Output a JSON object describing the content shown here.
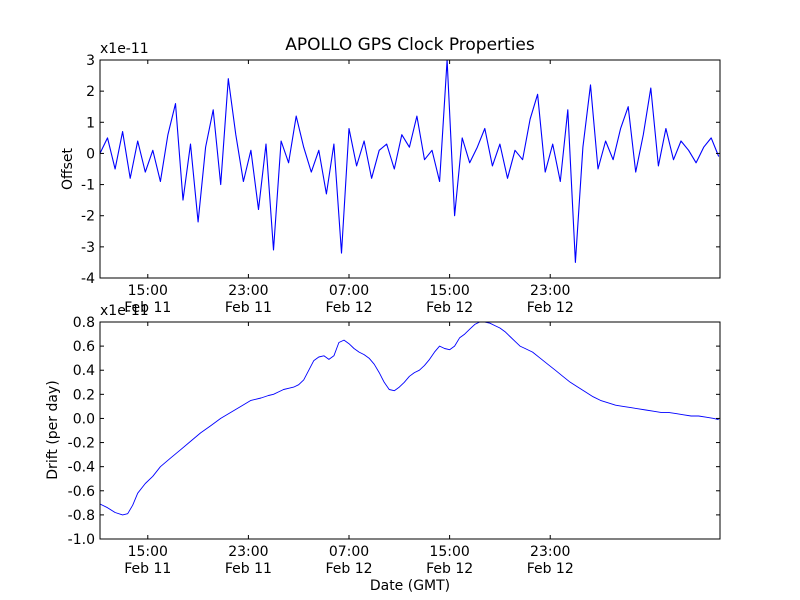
{
  "chart_data": [
    {
      "type": "line",
      "title": "APOLLO GPS Clock Properties",
      "ylabel": "Offset",
      "xlabel": "",
      "y_multiplier": "x1e-11",
      "ylim": [
        -4,
        3
      ],
      "xlim_hours": [
        11.2,
        60.5
      ],
      "y_ticks": [
        {
          "v": 3,
          "label": "3"
        },
        {
          "v": 2,
          "label": "2"
        },
        {
          "v": 1,
          "label": "1"
        },
        {
          "v": 0,
          "label": "0"
        },
        {
          "v": -1,
          "label": "-1"
        },
        {
          "v": -2,
          "label": "-2"
        },
        {
          "v": -3,
          "label": "-3"
        },
        {
          "v": -4,
          "label": "-4"
        }
      ],
      "x_ticks": [
        {
          "h": 15,
          "time": "15:00",
          "date": "Feb 11"
        },
        {
          "h": 23,
          "time": "23:00",
          "date": "Feb 11"
        },
        {
          "h": 31,
          "time": "07:00",
          "date": "Feb 12"
        },
        {
          "h": 39,
          "time": "15:00",
          "date": "Feb 12"
        },
        {
          "h": 47,
          "time": "23:00",
          "date": "Feb 12"
        }
      ],
      "color": "#0000ff",
      "series": [
        {
          "name": "Offset",
          "x": [
            11.2,
            11.8,
            12.4,
            13.0,
            13.6,
            14.2,
            14.8,
            15.4,
            16.0,
            16.6,
            17.2,
            17.8,
            18.4,
            19.0,
            19.6,
            20.2,
            20.8,
            21.4,
            22.0,
            22.6,
            23.2,
            23.8,
            24.4,
            25.0,
            25.6,
            26.2,
            26.8,
            27.4,
            28.0,
            28.6,
            29.2,
            29.8,
            30.4,
            31.0,
            31.6,
            32.2,
            32.8,
            33.4,
            34.0,
            34.6,
            35.2,
            35.8,
            36.4,
            37.0,
            37.6,
            38.2,
            38.8,
            39.4,
            40.0,
            40.6,
            41.2,
            41.8,
            42.4,
            43.0,
            43.6,
            44.2,
            44.8,
            45.4,
            46.0,
            46.6,
            47.2,
            47.8,
            48.4,
            49.0,
            49.6,
            50.2,
            50.8,
            51.4,
            52.0,
            52.6,
            53.2,
            53.8,
            54.4,
            55.0,
            55.6,
            56.2,
            56.8,
            57.4,
            58.0,
            58.6,
            59.2,
            59.8,
            60.4
          ],
          "y": [
            0.0,
            0.5,
            -0.5,
            0.7,
            -0.8,
            0.4,
            -0.6,
            0.1,
            -0.9,
            0.6,
            1.6,
            -1.5,
            0.3,
            -2.2,
            0.2,
            1.4,
            -1.0,
            2.4,
            0.6,
            -0.9,
            0.1,
            -1.8,
            0.3,
            -3.1,
            0.4,
            -0.3,
            1.2,
            0.2,
            -0.6,
            0.1,
            -1.3,
            0.3,
            -3.2,
            0.8,
            -0.4,
            0.4,
            -0.8,
            0.1,
            0.3,
            -0.5,
            0.6,
            0.2,
            1.2,
            -0.2,
            0.1,
            -0.9,
            3.0,
            -2.0,
            0.5,
            -0.3,
            0.2,
            0.8,
            -0.4,
            0.3,
            -0.8,
            0.1,
            -0.2,
            1.1,
            1.9,
            -0.6,
            0.3,
            -0.9,
            1.4,
            -3.5,
            0.2,
            2.2,
            -0.5,
            0.4,
            -0.2,
            0.8,
            1.5,
            -0.6,
            0.6,
            2.1,
            -0.4,
            0.8,
            -0.2,
            0.4,
            0.1,
            -0.3,
            0.2,
            0.5,
            -0.1
          ]
        }
      ]
    },
    {
      "type": "line",
      "title": "",
      "ylabel": "Drift (per day)",
      "xlabel": "Date (GMT)",
      "y_multiplier": "x1e-11",
      "ylim": [
        -1.0,
        0.8
      ],
      "xlim_hours": [
        11.2,
        60.5
      ],
      "y_ticks": [
        {
          "v": 0.8,
          "label": "0.8"
        },
        {
          "v": 0.6,
          "label": "0.6"
        },
        {
          "v": 0.4,
          "label": "0.4"
        },
        {
          "v": 0.2,
          "label": "0.2"
        },
        {
          "v": 0.0,
          "label": "0.0"
        },
        {
          "v": -0.2,
          "label": "-0.2"
        },
        {
          "v": -0.4,
          "label": "-0.4"
        },
        {
          "v": -0.6,
          "label": "-0.6"
        },
        {
          "v": -0.8,
          "label": "-0.8"
        },
        {
          "v": -1.0,
          "label": "-1.0"
        }
      ],
      "x_ticks": [
        {
          "h": 15,
          "time": "15:00",
          "date": "Feb 11"
        },
        {
          "h": 23,
          "time": "23:00",
          "date": "Feb 11"
        },
        {
          "h": 31,
          "time": "07:00",
          "date": "Feb 12"
        },
        {
          "h": 39,
          "time": "15:00",
          "date": "Feb 12"
        },
        {
          "h": 47,
          "time": "23:00",
          "date": "Feb 12"
        }
      ],
      "color": "#0000ff",
      "series": [
        {
          "name": "Drift",
          "x": [
            11.2,
            11.8,
            12.4,
            13.0,
            13.4,
            13.8,
            14.2,
            14.8,
            15.4,
            16.0,
            16.8,
            17.6,
            18.4,
            19.2,
            20.0,
            20.8,
            21.6,
            22.4,
            23.2,
            24.0,
            24.6,
            25.0,
            25.4,
            25.8,
            26.2,
            26.6,
            27.0,
            27.4,
            27.8,
            28.2,
            28.6,
            29.0,
            29.4,
            29.8,
            30.2,
            30.6,
            31.0,
            31.4,
            31.8,
            32.2,
            32.6,
            33.0,
            33.4,
            33.8,
            34.2,
            34.6,
            35.0,
            35.4,
            35.8,
            36.2,
            36.6,
            37.0,
            37.4,
            37.8,
            38.2,
            38.6,
            39.0,
            39.4,
            39.8,
            40.2,
            40.6,
            41.0,
            41.4,
            41.8,
            42.2,
            42.6,
            43.0,
            43.4,
            43.8,
            44.2,
            44.6,
            45.0,
            45.6,
            46.2,
            46.8,
            47.4,
            48.0,
            48.6,
            49.2,
            49.8,
            50.4,
            51.0,
            51.6,
            52.2,
            52.8,
            53.4,
            54.0,
            54.6,
            55.2,
            55.8,
            56.4,
            57.0,
            57.6,
            58.2,
            58.8,
            59.4,
            60.0,
            60.4
          ],
          "y": [
            -0.71,
            -0.74,
            -0.78,
            -0.8,
            -0.79,
            -0.72,
            -0.62,
            -0.54,
            -0.48,
            -0.4,
            -0.33,
            -0.26,
            -0.19,
            -0.12,
            -0.06,
            0.0,
            0.05,
            0.1,
            0.15,
            0.17,
            0.19,
            0.2,
            0.22,
            0.24,
            0.25,
            0.26,
            0.28,
            0.32,
            0.4,
            0.48,
            0.51,
            0.52,
            0.49,
            0.52,
            0.63,
            0.65,
            0.62,
            0.58,
            0.55,
            0.53,
            0.5,
            0.45,
            0.38,
            0.3,
            0.24,
            0.23,
            0.26,
            0.3,
            0.35,
            0.38,
            0.4,
            0.44,
            0.49,
            0.55,
            0.6,
            0.58,
            0.57,
            0.6,
            0.67,
            0.7,
            0.74,
            0.78,
            0.8,
            0.8,
            0.79,
            0.77,
            0.75,
            0.72,
            0.68,
            0.64,
            0.6,
            0.58,
            0.55,
            0.5,
            0.45,
            0.4,
            0.35,
            0.3,
            0.26,
            0.22,
            0.18,
            0.15,
            0.13,
            0.11,
            0.1,
            0.09,
            0.08,
            0.07,
            0.06,
            0.05,
            0.05,
            0.04,
            0.03,
            0.02,
            0.02,
            0.01,
            0.0,
            -0.01
          ]
        }
      ]
    }
  ]
}
